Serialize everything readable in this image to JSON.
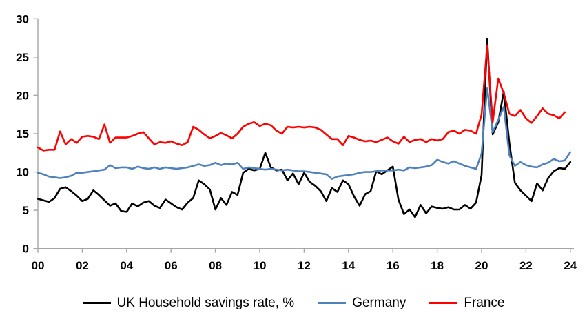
{
  "chart_data": {
    "type": "line",
    "title": "",
    "xlabel": "",
    "ylabel": "",
    "x_start": 2000,
    "x_step": 0.25,
    "ylim": [
      0,
      30
    ],
    "xlim": [
      2000,
      2024.25
    ],
    "y_ticks": [
      0,
      5,
      10,
      15,
      20,
      25,
      30
    ],
    "x_tick_years": [
      2000,
      2002,
      2004,
      2006,
      2008,
      2010,
      2012,
      2014,
      2016,
      2018,
      2020,
      2022,
      2024
    ],
    "x_tick_labels": [
      "00",
      "02",
      "04",
      "06",
      "08",
      "10",
      "12",
      "14",
      "16",
      "18",
      "20",
      "22",
      "24"
    ],
    "grid": false,
    "legend_position": "bottom",
    "axis_color": "#a6a6a6",
    "text_color": "#000000",
    "series": [
      {
        "name": "UK Household savings rate, %",
        "color": "#000000",
        "values": [
          6.5,
          6.3,
          6.1,
          6.6,
          7.8,
          8.0,
          7.5,
          6.9,
          6.2,
          6.5,
          7.6,
          7.0,
          6.3,
          5.6,
          5.9,
          4.9,
          4.8,
          5.9,
          5.5,
          6.0,
          6.2,
          5.6,
          5.3,
          6.4,
          5.9,
          5.4,
          5.1,
          6.0,
          6.6,
          8.9,
          8.4,
          7.7,
          5.1,
          6.6,
          5.7,
          7.4,
          7.0,
          9.9,
          10.4,
          10.2,
          10.4,
          12.5,
          10.6,
          10.2,
          10.3,
          8.9,
          9.8,
          8.4,
          9.9,
          8.7,
          8.2,
          7.5,
          6.2,
          7.9,
          7.4,
          8.9,
          8.4,
          6.8,
          5.6,
          7.1,
          7.5,
          10.1,
          9.7,
          10.2,
          10.7,
          6.4,
          4.5,
          5.1,
          4.1,
          5.7,
          4.6,
          5.5,
          5.3,
          5.2,
          5.4,
          5.1,
          5.1,
          5.7,
          5.2,
          6.0,
          9.6,
          27.4,
          14.9,
          16.5,
          20.5,
          13.8,
          8.6,
          7.6,
          6.9,
          6.2,
          8.5,
          7.6,
          9.2,
          10.1,
          10.5,
          10.4,
          11.3
        ]
      },
      {
        "name": "Germany",
        "color": "#4f81bd",
        "values": [
          9.9,
          9.7,
          9.4,
          9.3,
          9.2,
          9.3,
          9.5,
          9.9,
          9.9,
          10.0,
          10.1,
          10.2,
          10.3,
          10.9,
          10.5,
          10.6,
          10.6,
          10.4,
          10.7,
          10.5,
          10.4,
          10.6,
          10.4,
          10.6,
          10.5,
          10.4,
          10.5,
          10.6,
          10.8,
          11.0,
          10.8,
          10.9,
          11.2,
          10.9,
          11.1,
          11.0,
          11.2,
          10.4,
          10.6,
          10.5,
          10.4,
          10.3,
          10.4,
          10.3,
          10.2,
          10.3,
          10.2,
          10.1,
          10.1,
          10.0,
          9.9,
          9.8,
          9.7,
          9.1,
          9.4,
          9.5,
          9.6,
          9.7,
          9.9,
          10.0,
          10.0,
          10.1,
          10.2,
          10.2,
          10.2,
          10.3,
          10.2,
          10.6,
          10.5,
          10.6,
          10.7,
          10.9,
          11.6,
          11.3,
          11.1,
          11.4,
          11.1,
          10.8,
          10.6,
          10.4,
          12.4,
          21.0,
          15.2,
          16.8,
          18.5,
          12.2,
          10.8,
          11.3,
          10.9,
          10.7,
          10.6,
          11.0,
          11.2,
          11.7,
          11.4,
          11.5,
          12.6
        ]
      },
      {
        "name": "France",
        "color": "#fe0000",
        "values": [
          13.2,
          12.8,
          12.9,
          12.9,
          15.3,
          13.6,
          14.3,
          13.8,
          14.6,
          14.7,
          14.6,
          14.3,
          16.2,
          13.8,
          14.5,
          14.5,
          14.5,
          14.7,
          15.0,
          15.2,
          14.4,
          13.6,
          13.9,
          13.8,
          14.0,
          13.7,
          13.5,
          13.9,
          15.9,
          15.5,
          14.9,
          14.4,
          14.7,
          15.1,
          14.8,
          14.4,
          15.0,
          15.9,
          16.3,
          16.5,
          16.0,
          16.3,
          16.1,
          15.4,
          15.0,
          15.9,
          15.8,
          15.9,
          15.8,
          15.9,
          15.8,
          15.5,
          14.9,
          14.3,
          14.3,
          13.5,
          14.7,
          14.5,
          14.2,
          14.0,
          14.1,
          13.9,
          14.2,
          14.5,
          14.0,
          13.7,
          14.6,
          13.9,
          14.2,
          14.3,
          13.9,
          14.3,
          14.1,
          14.3,
          15.2,
          15.4,
          15.0,
          15.5,
          15.4,
          15.0,
          17.5,
          26.5,
          16.5,
          22.2,
          20.3,
          17.6,
          17.3,
          18.1,
          17.0,
          16.4,
          17.3,
          18.3,
          17.6,
          17.4,
          17.0,
          17.8
        ]
      }
    ]
  }
}
